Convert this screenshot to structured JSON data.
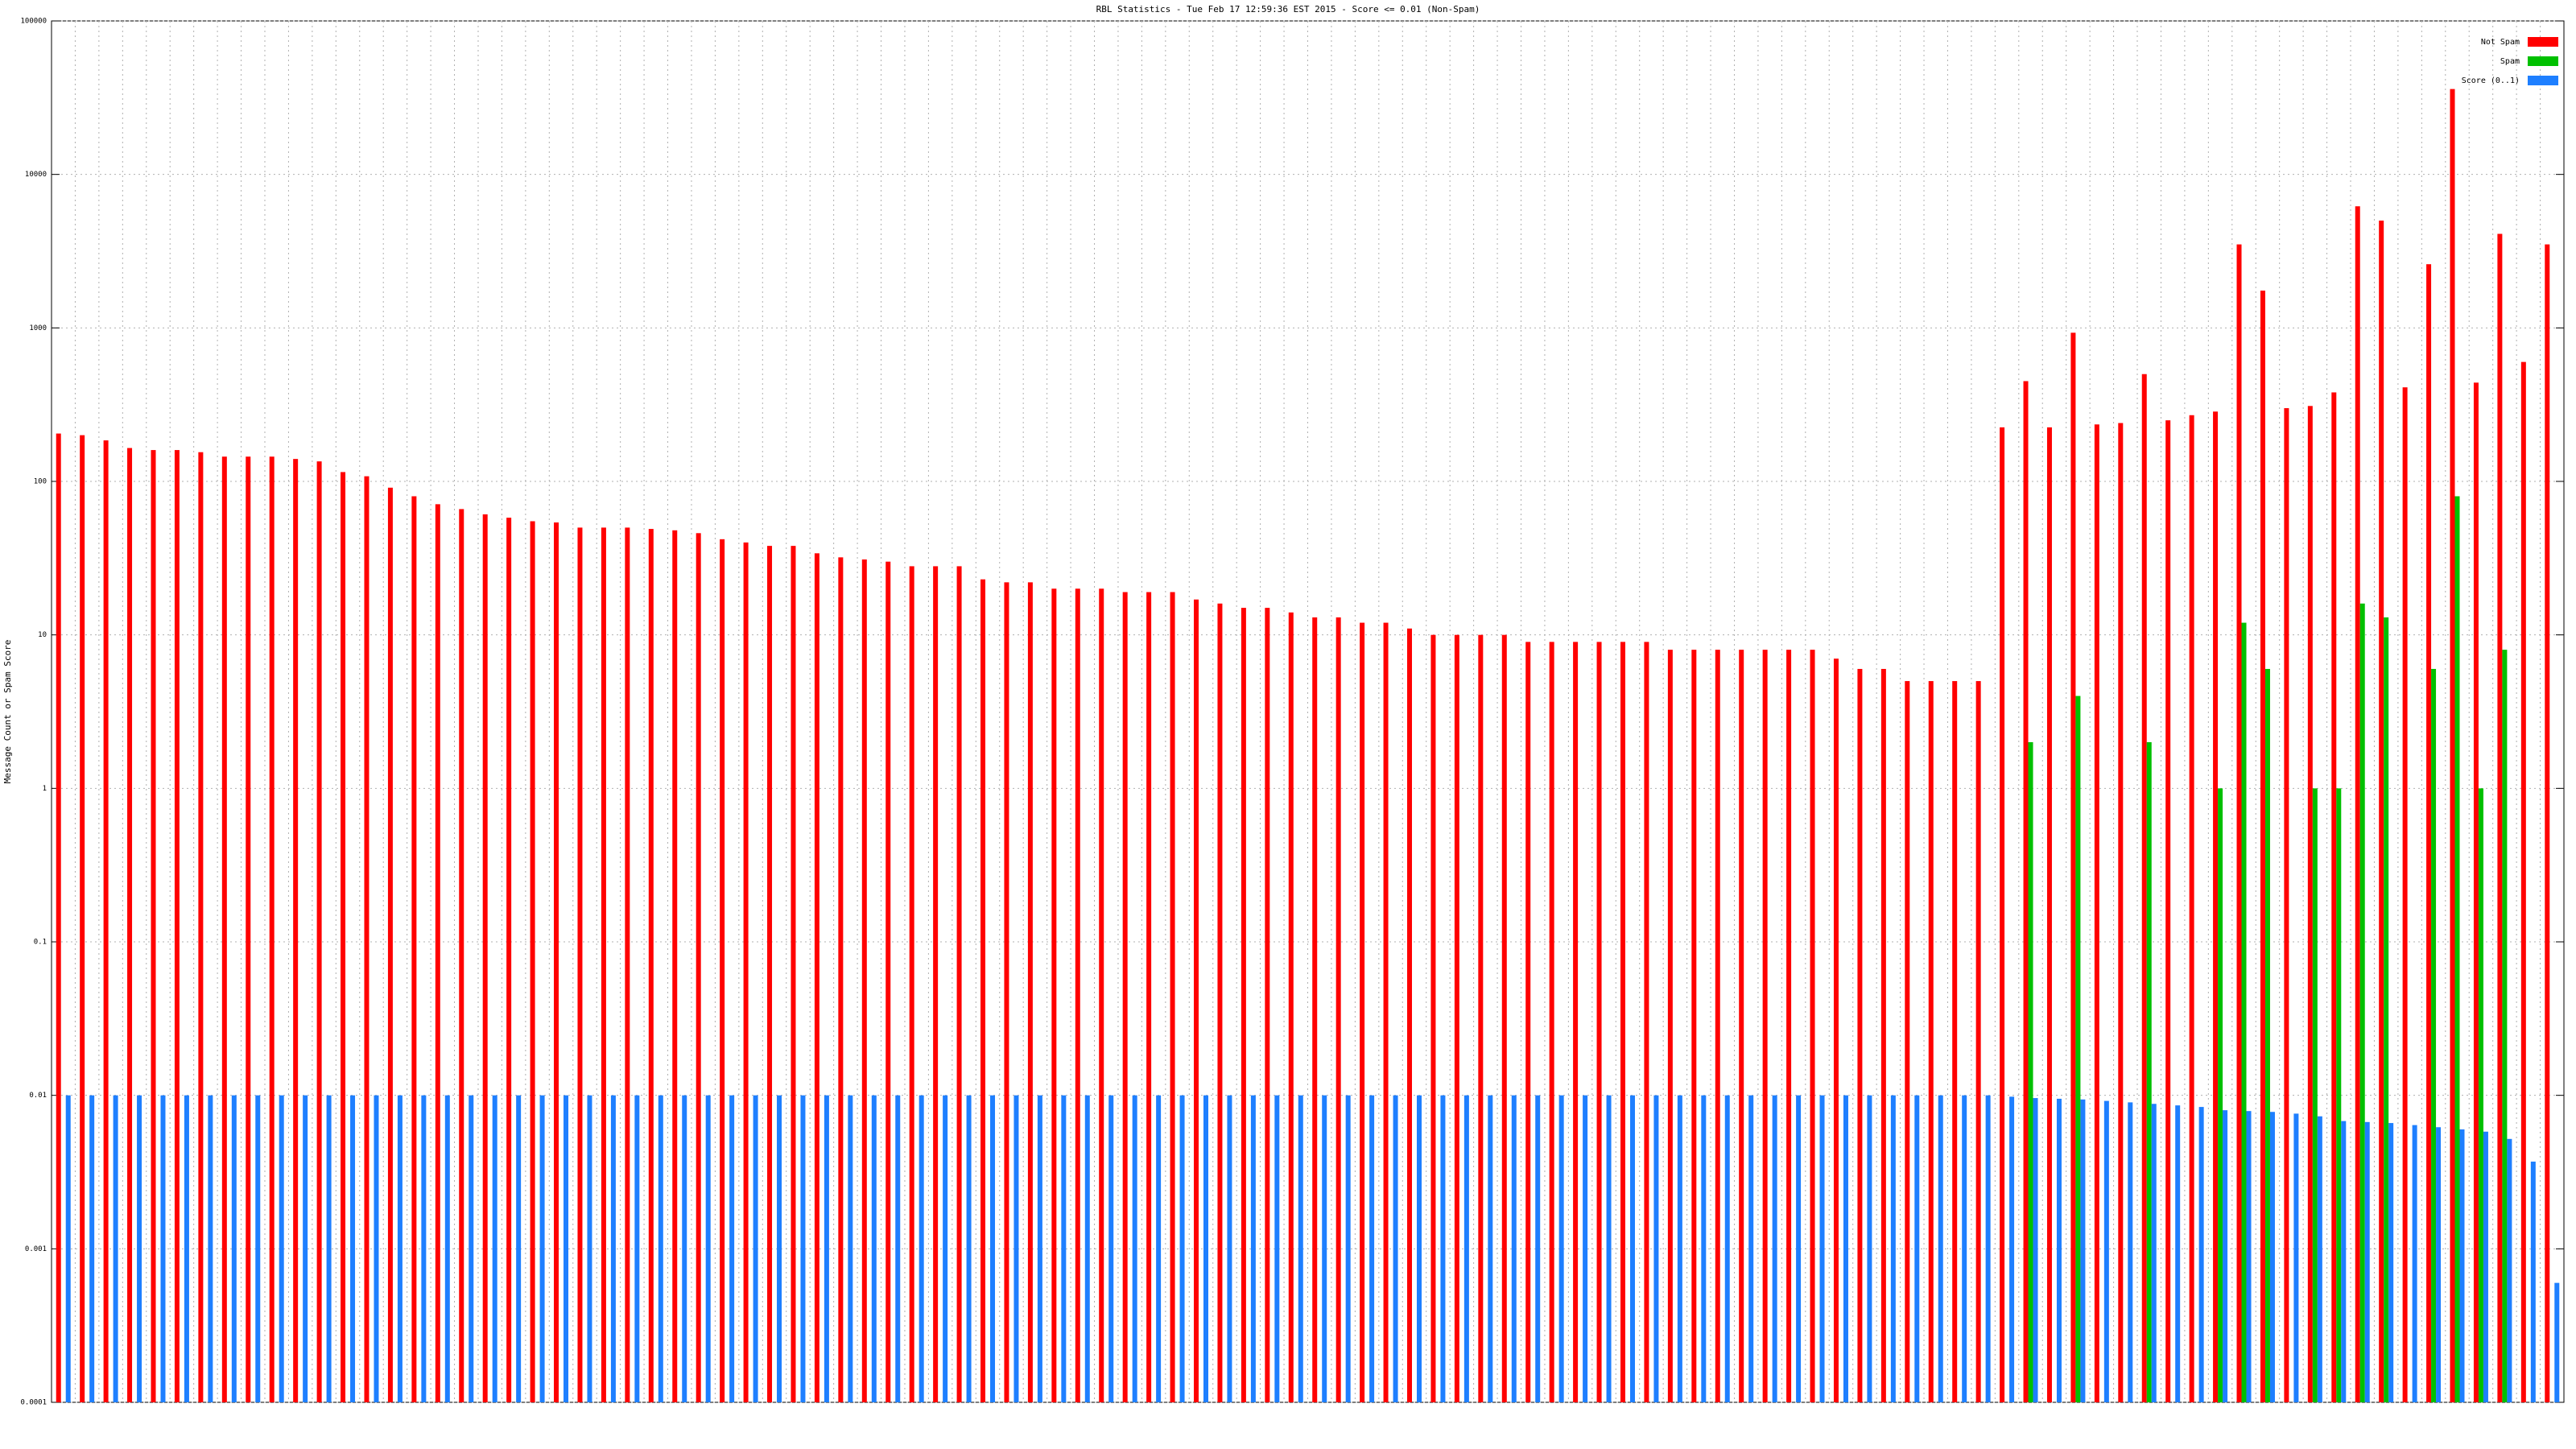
{
  "chart_data": {
    "type": "bar",
    "title": "RBL Statistics - Tue Feb 17 12:59:36 EST 2015 - Score <= 0.01 (Non-Spam)",
    "y_label": "Message Count or Spam Score",
    "log_scale": true,
    "grid": true,
    "legend": "top-right",
    "ylim": [
      0.0001,
      100000
    ],
    "yticks": [
      0.0001,
      0.001,
      0.01,
      0.1,
      1,
      10,
      100,
      1000,
      10000,
      100000
    ],
    "categories": [
      null,
      null,
      null,
      null,
      null,
      null,
      null,
      null,
      null,
      null,
      null,
      null,
      null,
      null,
      null,
      null,
      null,
      null,
      null,
      null,
      null,
      null,
      null,
      null,
      null,
      null,
      null,
      null,
      null,
      null,
      null,
      null,
      null,
      null,
      null,
      null,
      null,
      null,
      null,
      null,
      null,
      null,
      null,
      null,
      null,
      null,
      null,
      null,
      null,
      null,
      null,
      null,
      null,
      null,
      null,
      null,
      null,
      null,
      null,
      null,
      null,
      null,
      null,
      null,
      null,
      null,
      null,
      null,
      null,
      null,
      null,
      null,
      null,
      null,
      null,
      null,
      null,
      null,
      null,
      null,
      null,
      null,
      null,
      null,
      null,
      null,
      null,
      null,
      null,
      null,
      null,
      null,
      null,
      null,
      null,
      null,
      null,
      null,
      null,
      null,
      null,
      null,
      null,
      null,
      null,
      null
    ],
    "series": [
      {
        "name": "Not Spam",
        "color": "#ff0000",
        "values": [
          205,
          200,
          185,
          165,
          160,
          160,
          155,
          145,
          145,
          145,
          140,
          135,
          115,
          108,
          91,
          80,
          71,
          66,
          61,
          58,
          55,
          54,
          50,
          50,
          50,
          49,
          48,
          46,
          42,
          40,
          38,
          38,
          34,
          32,
          31,
          30,
          28,
          28,
          28,
          23,
          22,
          22,
          20,
          20,
          20,
          19,
          19,
          19,
          17,
          16,
          15,
          15,
          14,
          13,
          13,
          12,
          12,
          11,
          10,
          10,
          10,
          10,
          9,
          9,
          9,
          9,
          9,
          9,
          8,
          8,
          8,
          8,
          8,
          8,
          8,
          7,
          6,
          6,
          5,
          5,
          5,
          5,
          225,
          450,
          225,
          930,
          235,
          240,
          500,
          250,
          270,
          285,
          3500,
          1750,
          300,
          310,
          380,
          6200,
          5000,
          410,
          2600,
          36000,
          440,
          4100,
          600,
          3500
        ]
      },
      {
        "name": "Spam",
        "color": "#00c000",
        "values": [
          null,
          null,
          null,
          null,
          null,
          null,
          null,
          null,
          null,
          null,
          null,
          null,
          null,
          null,
          null,
          null,
          null,
          null,
          null,
          null,
          null,
          null,
          null,
          null,
          null,
          null,
          null,
          null,
          null,
          null,
          null,
          null,
          null,
          null,
          null,
          null,
          null,
          null,
          null,
          null,
          null,
          null,
          null,
          null,
          null,
          null,
          null,
          null,
          null,
          null,
          null,
          null,
          null,
          null,
          null,
          null,
          null,
          null,
          null,
          null,
          null,
          null,
          null,
          null,
          null,
          null,
          null,
          null,
          null,
          null,
          null,
          null,
          null,
          null,
          null,
          null,
          null,
          null,
          null,
          null,
          null,
          null,
          null,
          2,
          null,
          4,
          null,
          null,
          2,
          null,
          null,
          1,
          12,
          6,
          null,
          1,
          1,
          16,
          13,
          null,
          6,
          80,
          1,
          8,
          null,
          null
        ]
      },
      {
        "name": "Score (0..1)",
        "color": "#1e7fff",
        "values": [
          0.01,
          0.01,
          0.01,
          0.01,
          0.01,
          0.01,
          0.01,
          0.01,
          0.01,
          0.01,
          0.01,
          0.01,
          0.01,
          0.01,
          0.01,
          0.01,
          0.01,
          0.01,
          0.01,
          0.01,
          0.01,
          0.01,
          0.01,
          0.01,
          0.01,
          0.01,
          0.01,
          0.01,
          0.01,
          0.01,
          0.01,
          0.01,
          0.01,
          0.01,
          0.01,
          0.01,
          0.01,
          0.01,
          0.01,
          0.01,
          0.01,
          0.01,
          0.01,
          0.01,
          0.01,
          0.01,
          0.01,
          0.01,
          0.01,
          0.01,
          0.01,
          0.01,
          0.01,
          0.01,
          0.01,
          0.01,
          0.01,
          0.01,
          0.01,
          0.01,
          0.01,
          0.01,
          0.01,
          0.01,
          0.01,
          0.01,
          0.01,
          0.01,
          0.01,
          0.01,
          0.01,
          0.01,
          0.01,
          0.01,
          0.01,
          0.01,
          0.01,
          0.01,
          0.01,
          0.01,
          0.01,
          0.01,
          0.0098,
          0.0096,
          0.0095,
          0.0094,
          0.0092,
          0.009,
          0.0088,
          0.0086,
          0.0084,
          0.008,
          0.0079,
          0.0078,
          0.0076,
          0.0073,
          0.0068,
          0.0067,
          0.0066,
          0.0064,
          0.0062,
          0.006,
          0.0058,
          0.0052,
          0.0037,
          0.0006
        ]
      }
    ]
  }
}
